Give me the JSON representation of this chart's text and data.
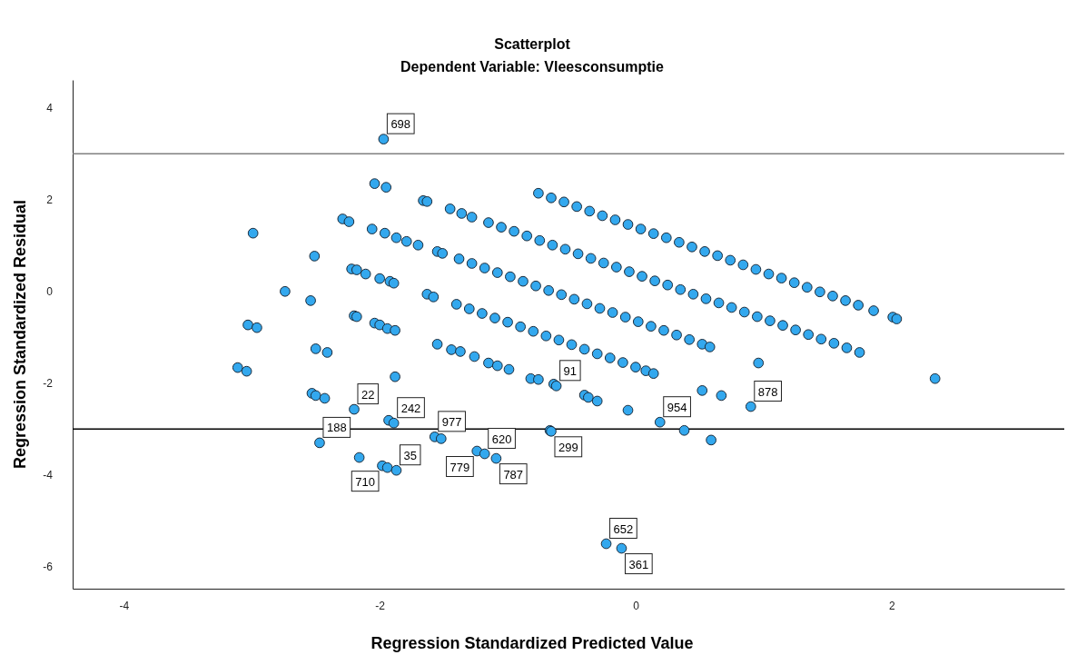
{
  "chart_data": {
    "type": "scatter",
    "title": "Scatterplot",
    "subtitle": "Dependent Variable: Vleesconsumptie",
    "xlabel": "Regression Standardized Predicted Value",
    "ylabel": "Regression Standardized Residual",
    "xlim": [
      -4.4,
      3.35
    ],
    "ylim": [
      -6.48,
      4.61
    ],
    "xticks": [
      -4,
      -2,
      0,
      2
    ],
    "yticks": [
      -6,
      -4,
      -2,
      0,
      2,
      4
    ],
    "grid": false,
    "marker": "circle",
    "ref_lines": [
      {
        "axis": "y",
        "value": 3,
        "color": "#808080"
      },
      {
        "axis": "y",
        "value": -3,
        "color": "#000000"
      }
    ],
    "annotations": [
      {
        "text": "698",
        "x": -1.97,
        "y": 3.32
      },
      {
        "text": "188",
        "x": -2.47,
        "y": -3.3
      },
      {
        "text": "22",
        "x": -2.2,
        "y": -2.57
      },
      {
        "text": "242",
        "x": -1.89,
        "y": -2.87
      },
      {
        "text": "977",
        "x": -1.57,
        "y": -3.17
      },
      {
        "text": "620",
        "x": -1.18,
        "y": -3.54
      },
      {
        "text": "35",
        "x": -1.87,
        "y": -3.9
      },
      {
        "text": "710",
        "x": -1.98,
        "y": -3.8
      },
      {
        "text": "779",
        "x": -1.24,
        "y": -3.48
      },
      {
        "text": "787",
        "x": -1.09,
        "y": -3.64
      },
      {
        "text": "91",
        "x": -0.62,
        "y": -2.06
      },
      {
        "text": "299",
        "x": -0.66,
        "y": -3.05
      },
      {
        "text": "954",
        "x": 0.19,
        "y": -2.85
      },
      {
        "text": "878",
        "x": 0.9,
        "y": -2.51
      },
      {
        "text": "652",
        "x": -0.23,
        "y": -5.5
      },
      {
        "text": "361",
        "x": -0.11,
        "y": -5.6
      }
    ],
    "series": [
      {
        "color": "#33a8ee",
        "x": [
          -1.97,
          -2.04,
          -1.95,
          -1.66,
          -1.63,
          -1.45,
          -1.36,
          -1.28,
          -2.29,
          -2.24,
          -2.06,
          -1.96,
          -1.87,
          -1.79,
          -1.7,
          -1.55,
          -1.51,
          -2.99,
          -2.51,
          -2.74,
          -2.54,
          -2.22,
          -2.18,
          -2.11,
          -2.0,
          -1.92,
          -1.89,
          -1.63,
          -1.58,
          -2.2,
          -2.18,
          -2.04,
          -2.0,
          -1.94,
          -1.88,
          -1.55,
          -1.44,
          -1.37,
          -1.26,
          -1.15,
          -1.08,
          -0.99,
          -0.82,
          -0.76,
          -0.64,
          -0.62,
          -0.4,
          -0.37,
          -0.3,
          -0.06,
          0.19,
          0.38,
          0.59,
          0.96,
          0.52,
          0.67,
          0.9,
          2.34,
          2.01,
          2.04,
          -2.53,
          -2.5,
          -2.43,
          -1.88,
          -2.2,
          -2.47,
          -1.93,
          -1.89,
          -2.16,
          -1.98,
          -1.94,
          -1.87,
          -1.57,
          -1.52,
          -1.24,
          -1.18,
          -1.09,
          -0.67,
          -0.66,
          -0.23,
          -0.11,
          -3.11,
          -3.04,
          -3.03,
          -2.96,
          -2.5,
          -2.41,
          -0.76,
          -0.66,
          -0.56,
          -0.46,
          -0.36,
          -0.26,
          -0.16,
          -0.06,
          0.04,
          0.14,
          0.24,
          0.34,
          0.44,
          0.54,
          0.64,
          0.74,
          0.84,
          0.94,
          1.04,
          1.14,
          1.24,
          1.34,
          1.44,
          1.54,
          1.64,
          1.74,
          1.86,
          -1.15,
          -1.05,
          -0.95,
          -0.85,
          -0.75,
          -0.65,
          -0.55,
          -0.45,
          -0.35,
          -0.25,
          -0.15,
          -0.05,
          0.05,
          0.15,
          0.25,
          0.35,
          0.45,
          0.55,
          0.65,
          0.75,
          0.85,
          0.95,
          1.05,
          1.15,
          1.25,
          1.35,
          1.45,
          1.55,
          1.65,
          1.75,
          -1.38,
          -1.28,
          -1.18,
          -1.08,
          -0.98,
          -0.88,
          -0.78,
          -0.68,
          -0.58,
          -0.48,
          -0.38,
          -0.28,
          -0.18,
          -0.08,
          0.02,
          0.12,
          0.22,
          0.32,
          0.42,
          0.52,
          0.58,
          -1.4,
          -1.3,
          -1.2,
          -1.1,
          -1.0,
          -0.9,
          -0.8,
          -0.7,
          -0.6,
          -0.5,
          -0.4,
          -0.3,
          -0.2,
          -0.1,
          0.0,
          0.08,
          0.14
        ],
        "values": [
          3.32,
          2.35,
          2.27,
          1.98,
          1.96,
          1.8,
          1.7,
          1.62,
          1.58,
          1.52,
          1.36,
          1.27,
          1.17,
          1.09,
          1.01,
          0.87,
          0.83,
          1.27,
          0.77,
          0.0,
          -0.2,
          0.49,
          0.47,
          0.38,
          0.28,
          0.22,
          0.18,
          -0.06,
          -0.12,
          -0.53,
          -0.55,
          -0.69,
          -0.73,
          -0.81,
          -0.85,
          -1.15,
          -1.27,
          -1.31,
          -1.42,
          -1.56,
          -1.62,
          -1.7,
          -1.9,
          -1.92,
          -2.02,
          -2.06,
          -2.26,
          -2.31,
          -2.39,
          -2.59,
          -2.85,
          -3.03,
          -3.24,
          -1.56,
          -2.16,
          -2.27,
          -2.51,
          -1.9,
          -0.56,
          -0.6,
          -2.22,
          -2.27,
          -2.33,
          -1.86,
          -2.57,
          -3.3,
          -2.81,
          -2.87,
          -3.62,
          -3.8,
          -3.84,
          -3.9,
          -3.17,
          -3.21,
          -3.48,
          -3.54,
          -3.64,
          -3.03,
          -3.05,
          -5.5,
          -5.6,
          -1.66,
          -1.74,
          -0.73,
          -0.79,
          -1.25,
          -1.33,
          2.14,
          2.04,
          1.95,
          1.85,
          1.75,
          1.65,
          1.56,
          1.46,
          1.36,
          1.26,
          1.17,
          1.07,
          0.97,
          0.87,
          0.78,
          0.68,
          0.58,
          0.48,
          0.38,
          0.29,
          0.19,
          0.09,
          -0.01,
          -0.1,
          -0.2,
          -0.3,
          -0.42,
          1.5,
          1.4,
          1.31,
          1.21,
          1.11,
          1.01,
          0.92,
          0.82,
          0.72,
          0.62,
          0.53,
          0.43,
          0.33,
          0.23,
          0.14,
          0.04,
          -0.06,
          -0.16,
          -0.25,
          -0.35,
          -0.45,
          -0.55,
          -0.64,
          -0.74,
          -0.84,
          -0.94,
          -1.04,
          -1.13,
          -1.23,
          -1.33,
          0.71,
          0.61,
          0.51,
          0.41,
          0.32,
          0.22,
          0.12,
          0.02,
          -0.07,
          -0.17,
          -0.27,
          -0.37,
          -0.46,
          -0.56,
          -0.66,
          -0.76,
          -0.85,
          -0.95,
          -1.05,
          -1.15,
          -1.21,
          -0.28,
          -0.38,
          -0.48,
          -0.58,
          -0.67,
          -0.77,
          -0.87,
          -0.97,
          -1.06,
          -1.16,
          -1.26,
          -1.36,
          -1.45,
          -1.55,
          -1.65,
          -1.73,
          -1.79
        ]
      }
    ]
  }
}
